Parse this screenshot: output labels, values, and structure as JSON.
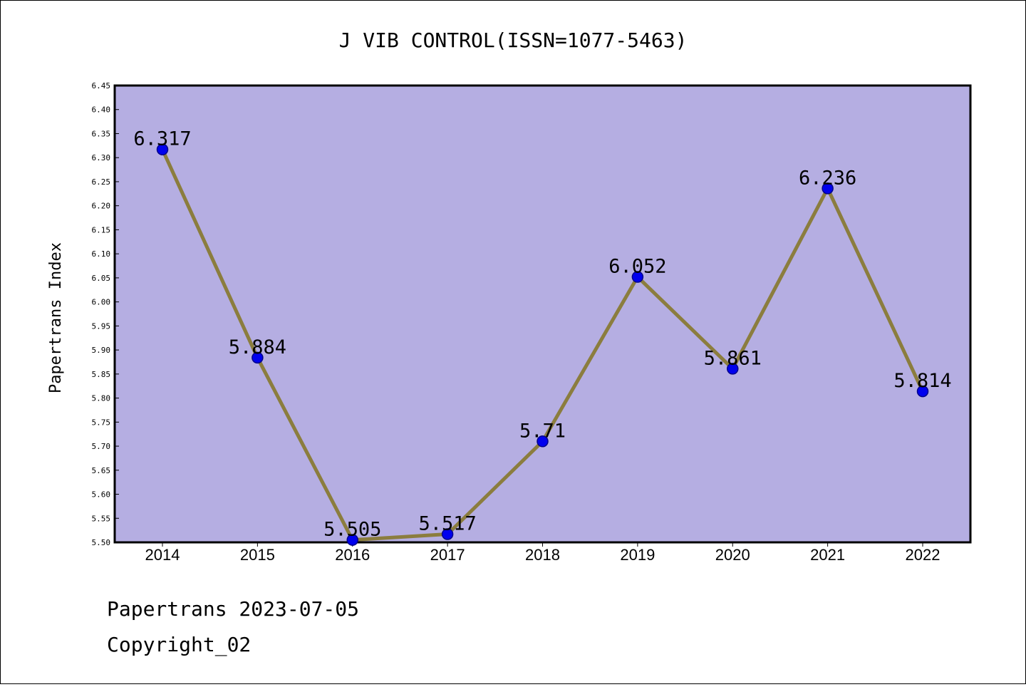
{
  "chart_data": {
    "type": "line",
    "title": "J VIB CONTROL(ISSN=1077-5463)",
    "xlabel": "",
    "ylabel": "Papertrans Index",
    "categories": [
      "2014",
      "2015",
      "2016",
      "2017",
      "2018",
      "2019",
      "2020",
      "2021",
      "2022"
    ],
    "series": [
      {
        "values": [
          6.317,
          5.884,
          5.505,
          5.517,
          5.71,
          6.052,
          5.861,
          6.236,
          5.814
        ],
        "labels": [
          "6.317",
          "5.884",
          "5.505",
          "5.517",
          "5.71",
          "6.052",
          "5.861",
          "6.236",
          "5.814"
        ]
      }
    ],
    "ylim": [
      5.5,
      6.45
    ],
    "yticks": [
      "5.50",
      "5.55",
      "5.60",
      "5.65",
      "5.70",
      "5.75",
      "5.80",
      "5.85",
      "5.90",
      "5.95",
      "6.00",
      "6.05",
      "6.10",
      "6.15",
      "6.20",
      "6.25",
      "6.30",
      "6.35",
      "6.40",
      "6.45"
    ],
    "grid": false,
    "legend": "none",
    "colors": {
      "plot_background": "#b5aee2",
      "line": "#8b7d3e",
      "marker": "#0000ee",
      "marker_edge": "#00008b"
    }
  },
  "footer": {
    "line1": "Papertrans 2023-07-05",
    "line2": "Copyright_02"
  }
}
